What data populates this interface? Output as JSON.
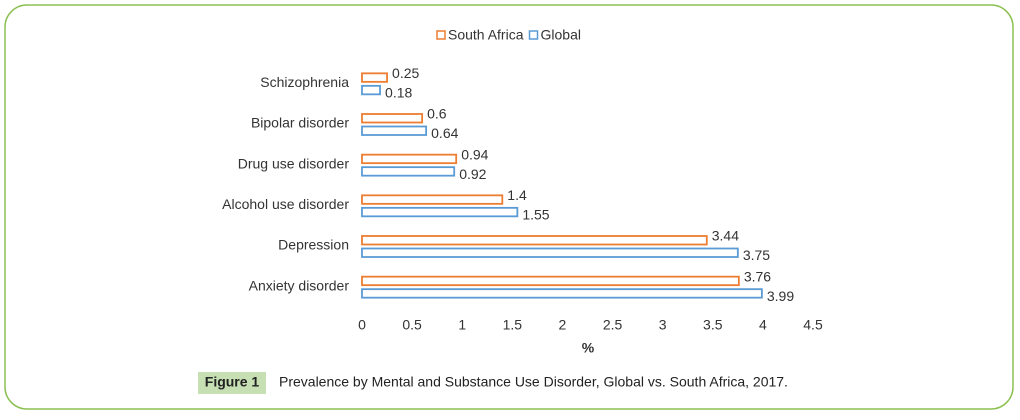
{
  "chart_data": {
    "type": "hbar",
    "categories": [
      "Schizophrenia",
      "Bipolar disorder",
      "Drug use disorder",
      "Alcohol use disorder",
      "Depression",
      "Anxiety disorder"
    ],
    "series": [
      {
        "name": "South Africa",
        "color": "#ed7d31",
        "values": [
          0.25,
          0.6,
          0.94,
          1.4,
          3.44,
          3.76
        ]
      },
      {
        "name": "Global",
        "color": "#5b9bd5",
        "values": [
          0.18,
          0.64,
          0.92,
          1.55,
          3.75,
          3.99
        ]
      }
    ],
    "xlabel": "%",
    "xlim": [
      0,
      4.5
    ],
    "xticks": [
      0,
      0.5,
      1,
      1.5,
      2,
      2.5,
      3,
      3.5,
      4,
      4.5
    ],
    "legend": "top"
  },
  "caption": {
    "label": "Figure 1",
    "text": "Prevalence by Mental and Substance Use Disorder, Global vs. South Africa, 2017."
  }
}
